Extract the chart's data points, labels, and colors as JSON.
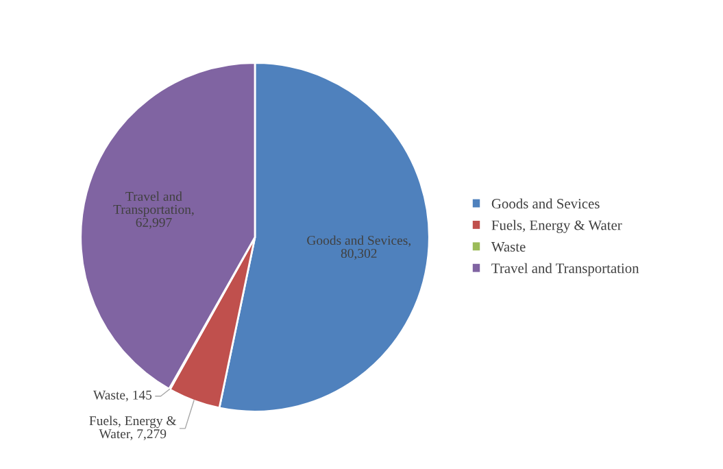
{
  "chart_data": {
    "type": "pie",
    "categories": [
      "Goods and Sevices",
      "Fuels, Energy & Water",
      "Waste",
      "Travel and Transportation"
    ],
    "values": [
      80302,
      7279,
      145,
      62997
    ],
    "colors": [
      "#4f81bd",
      "#c0504d",
      "#9bbb59",
      "#8064a2"
    ],
    "value_labels": [
      "Goods and Sevices, 80,302",
      "Fuels, Energy & Water, 7,279",
      "Waste, 145",
      "Travel and Transportation, 62,997"
    ],
    "legend": "right"
  }
}
